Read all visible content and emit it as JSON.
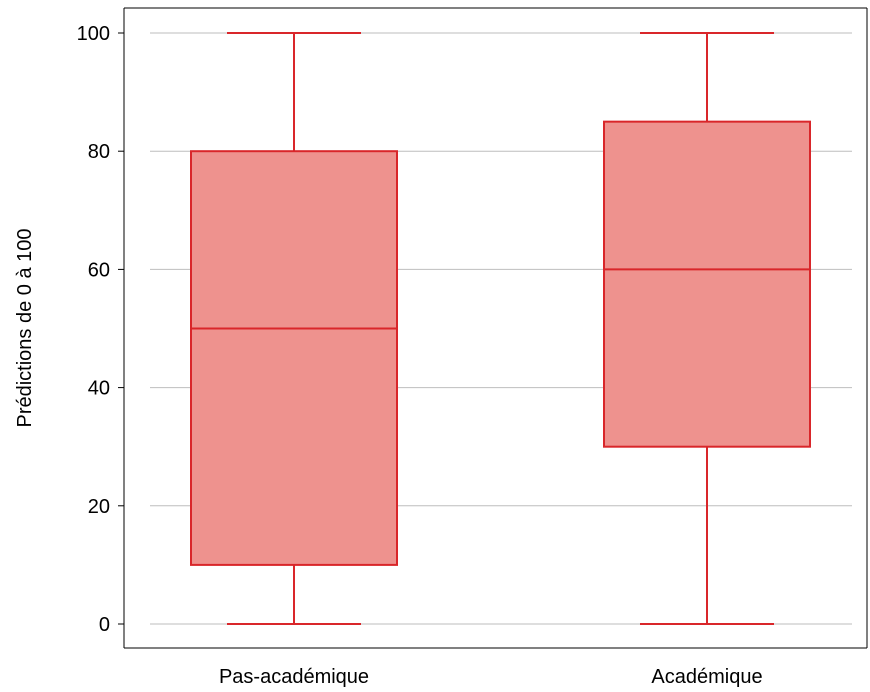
{
  "chart_data": {
    "type": "box",
    "title": "",
    "xlabel": "",
    "ylabel": "Prédictions de 0 à 100",
    "ylim": [
      0,
      100
    ],
    "yticks": [
      "0",
      "20",
      "40",
      "60",
      "80",
      "100"
    ],
    "grid": "horizontal",
    "legend": "none",
    "categories": [
      "Pas-académique",
      "Académique"
    ],
    "boxes": [
      {
        "category": "Pas-académique",
        "min": 0,
        "q1": 10,
        "median": 50,
        "q3": 80,
        "max": 100
      },
      {
        "category": "Académique",
        "min": 0,
        "q1": 30,
        "median": 60,
        "q3": 85,
        "max": 100
      }
    ],
    "colors": {
      "box_fill": "#ee928e",
      "box_stroke": "#d9262a",
      "grid": "#bebebe"
    }
  }
}
